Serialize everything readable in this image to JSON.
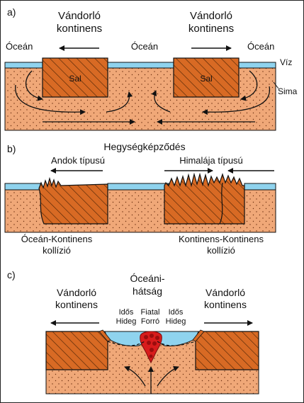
{
  "colors": {
    "water": "#8fd3ee",
    "mantle": "#f0a878",
    "crust": "#d86a24",
    "crust_hatch": "#5a2a08",
    "magma": "#d81c1c",
    "line": "#111111"
  },
  "panel_a": {
    "letter": "a)",
    "drifting_continent_left": [
      "Vándorló",
      "kontinens"
    ],
    "drifting_continent_right": [
      "Vándorló",
      "kontinens"
    ],
    "ocean_left": "Óceán",
    "ocean_center": "Óceán",
    "ocean_right": "Óceán",
    "sal_left": "Sal",
    "sal_right": "Sal",
    "water_label": "Víz",
    "sima_label": "Sima"
  },
  "panel_b": {
    "letter": "b)",
    "title": "Hegységképződés",
    "andes_type": "Andok típusú",
    "himalaya_type": "Himalája típusú",
    "ocean_continent": [
      "Óceán-Kontinens",
      "kollízió"
    ],
    "continent_continent": [
      "Kontinens-Kontinens",
      "kollízió"
    ]
  },
  "panel_c": {
    "letter": "c)",
    "ridge_title": [
      "Óceáni-",
      "hátság"
    ],
    "drifting_continent_left": [
      "Vándorló",
      "kontinens"
    ],
    "drifting_continent_right": [
      "Vándorló",
      "kontinens"
    ],
    "old_cold_left": [
      "Idős",
      "Hideg"
    ],
    "young_hot": [
      "Fiatal",
      "Forró"
    ],
    "old_cold_right": [
      "Idős",
      "Hideg"
    ]
  }
}
